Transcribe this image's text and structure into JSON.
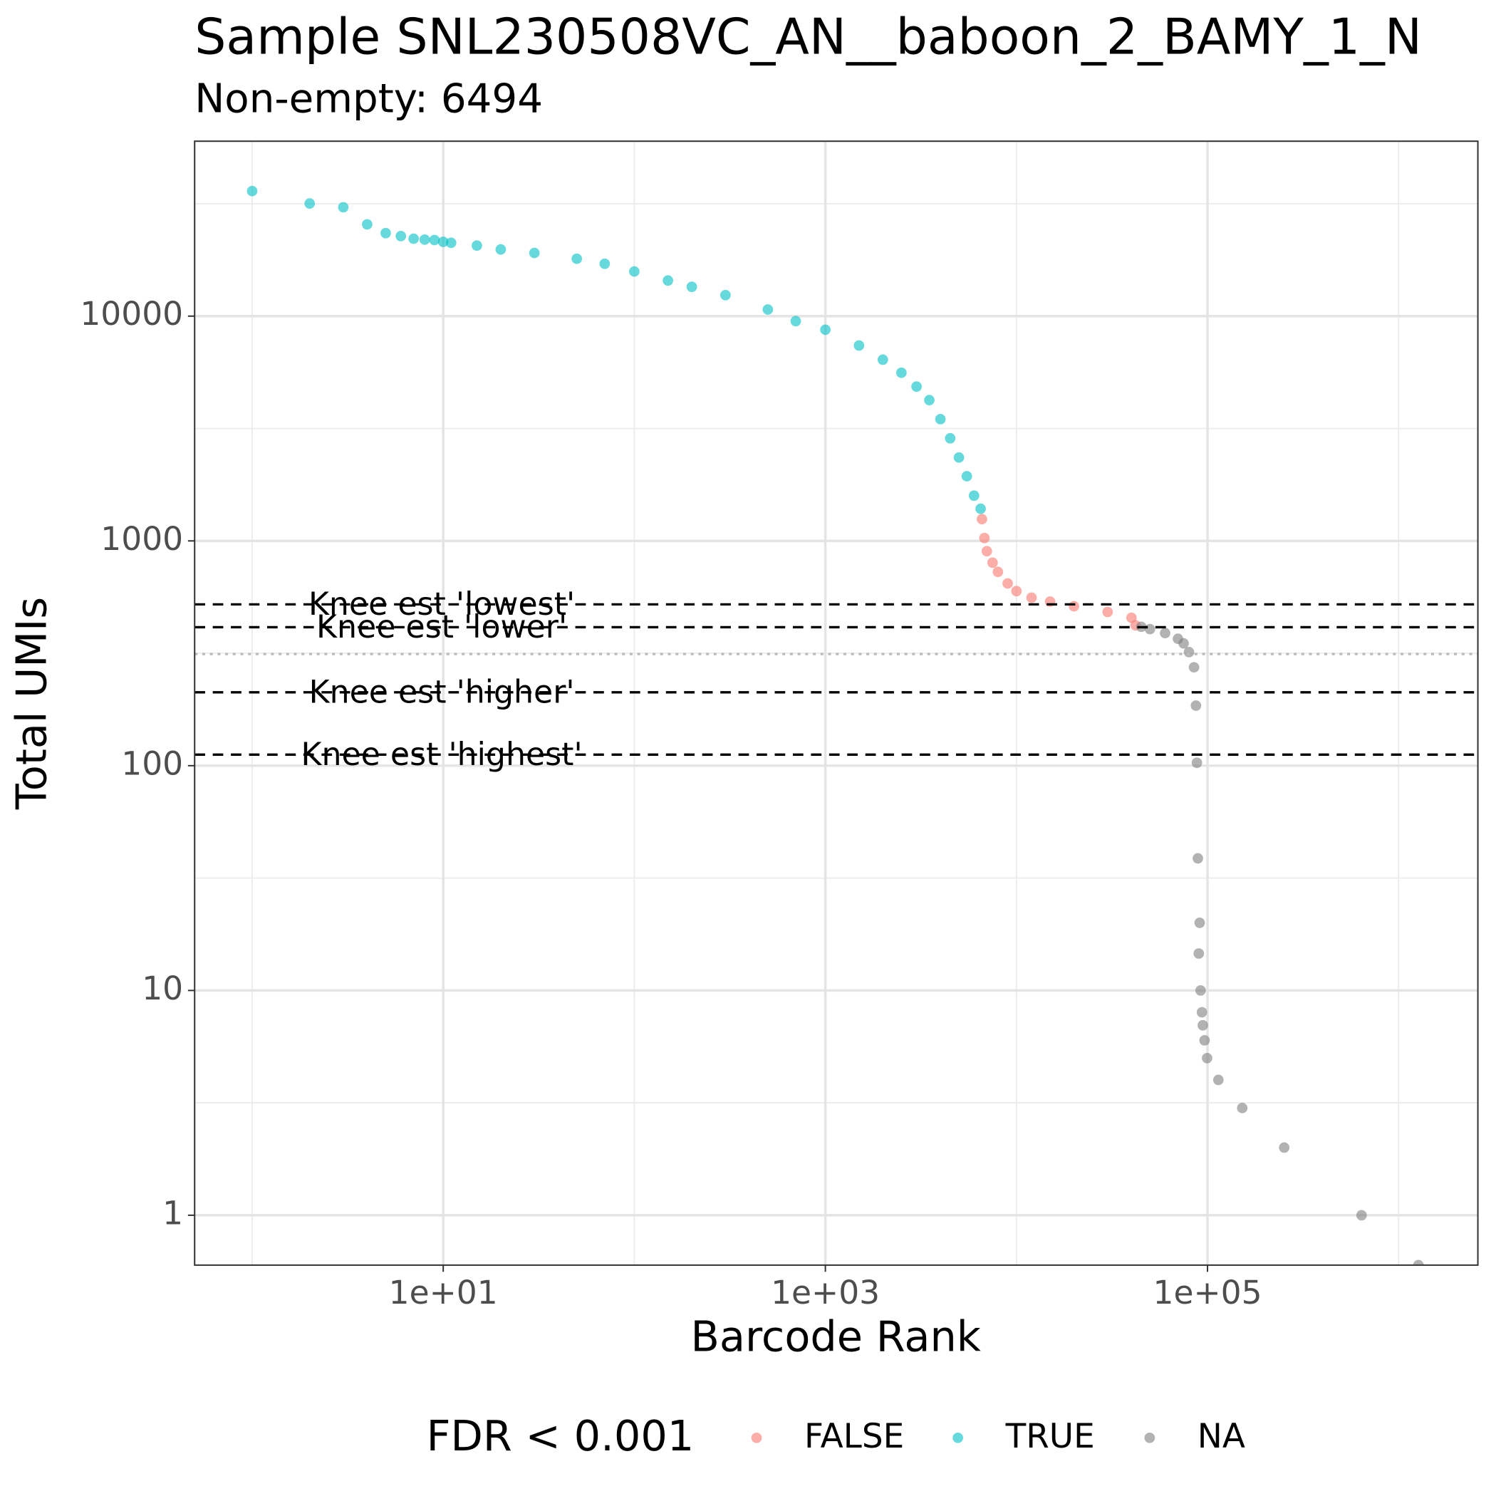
{
  "chart_data": {
    "type": "scatter",
    "title": "Sample SNL230508VC_AN__baboon_2_BAMY_1_N",
    "subtitle": "Non-empty: 6494",
    "x_label": "Barcode Rank",
    "y_label": "Total UMIs",
    "log_x": true,
    "log_y": true,
    "grid": true,
    "legend_position": "bottom",
    "legend_title": "FDR < 0.001",
    "xlim": [
      0.5,
      2600000
    ],
    "ylim": [
      0.6,
      60000
    ],
    "xticks": [
      {
        "value": 10,
        "label": "1e+01"
      },
      {
        "value": 1000,
        "label": "1e+03"
      },
      {
        "value": 100000,
        "label": "1e+05"
      }
    ],
    "yticks": [
      1,
      10,
      100,
      1000,
      10000
    ],
    "hlines": [
      {
        "label": "Knee est 'lowest'",
        "value": 522,
        "style": "dashed"
      },
      {
        "label": "Knee est 'lower'",
        "value": 413,
        "style": "dashed"
      },
      {
        "value": 314,
        "style": "dotted"
      },
      {
        "label": "Knee est 'higher'",
        "value": 212,
        "style": "dashed"
      },
      {
        "label": "Knee est 'highest'",
        "value": 112,
        "style": "dashed"
      }
    ],
    "series": [
      {
        "name": "FALSE",
        "color": "#F8766D",
        "x": [
          6600,
          6800,
          7000,
          7500,
          8000,
          9000,
          10000,
          12000,
          15000,
          20000,
          30000,
          40000,
          42000
        ],
        "values": [
          1250,
          1030,
          900,
          800,
          728,
          647,
          598,
          559,
          537,
          512,
          483,
          455,
          421
        ]
      },
      {
        "name": "TRUE",
        "color": "#00BFC4",
        "x": [
          1,
          2,
          3,
          4,
          5,
          6,
          7,
          8,
          9,
          10,
          11,
          15,
          20,
          30,
          50,
          70,
          100,
          150,
          200,
          300,
          500,
          700,
          1000,
          1500,
          2000,
          2500,
          3000,
          3500,
          4000,
          4500,
          5000,
          5500,
          6000,
          6494
        ],
        "values": [
          36000,
          31700,
          30500,
          25600,
          23400,
          22700,
          22100,
          21900,
          21800,
          21400,
          21200,
          20600,
          19800,
          19100,
          18000,
          17100,
          15800,
          14400,
          13500,
          12400,
          10700,
          9500,
          8700,
          7400,
          6400,
          5600,
          4860,
          4230,
          3480,
          2860,
          2350,
          1940,
          1590,
          1390
        ]
      },
      {
        "name": "NA",
        "color": "#7F7F7F",
        "x": [
          45000,
          50000,
          60000,
          70000,
          75000,
          80000,
          85000,
          87000,
          88000,
          89000,
          90000,
          91000,
          92000,
          93500,
          94500,
          96500,
          99500,
          114000,
          152000,
          252000,
          640000,
          1270000
        ],
        "values": [
          415,
          405,
          389,
          367,
          350,
          320,
          274,
          185,
          103,
          38.7,
          14.6,
          20,
          10,
          8,
          7,
          6,
          5,
          4,
          3,
          2,
          1,
          0.6
        ]
      }
    ]
  }
}
